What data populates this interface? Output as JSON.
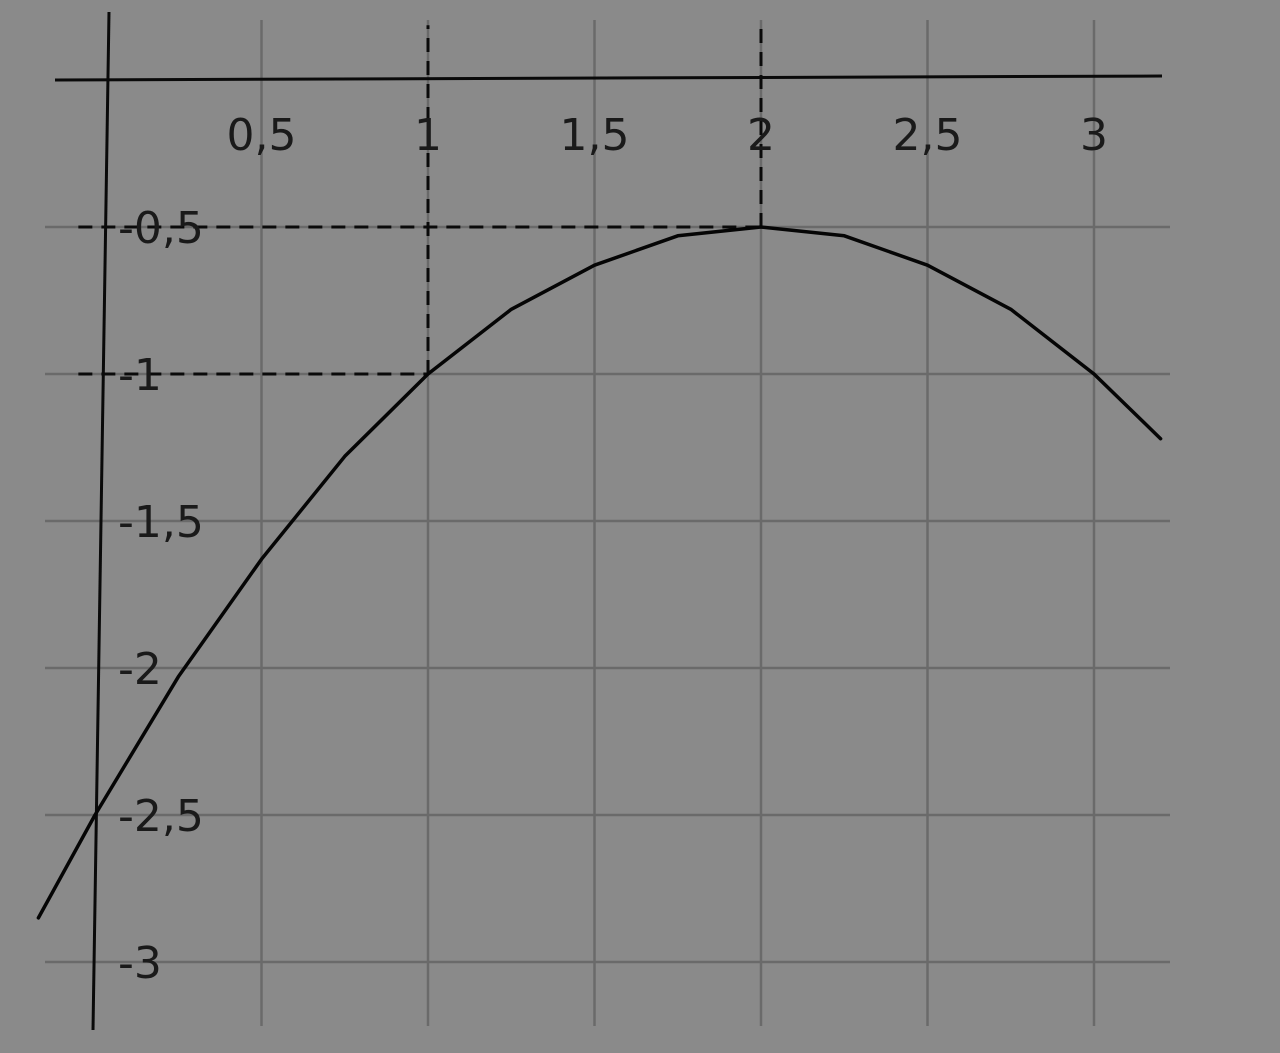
{
  "chart_data": {
    "type": "line",
    "title": "",
    "xlabel": "",
    "ylabel": "",
    "xlim": [
      -0.05,
      3.2
    ],
    "ylim": [
      -3.2,
      0.05
    ],
    "grid": true,
    "x_ticks": [
      {
        "value": 0.5,
        "label": "0,5"
      },
      {
        "value": 1,
        "label": "1"
      },
      {
        "value": 1.5,
        "label": "1,5"
      },
      {
        "value": 2,
        "label": "2"
      },
      {
        "value": 2.5,
        "label": "2,5"
      },
      {
        "value": 3,
        "label": "3"
      }
    ],
    "y_ticks": [
      {
        "value": -0.5,
        "label": "-0,5"
      },
      {
        "value": -1,
        "label": "-1"
      },
      {
        "value": -1.5,
        "label": "-1,5"
      },
      {
        "value": -2,
        "label": "-2"
      },
      {
        "value": -2.5,
        "label": "-2,5"
      },
      {
        "value": -3,
        "label": "-3"
      }
    ],
    "series": [
      {
        "function": "-0.5*(x-2)^2 - 0.5",
        "x": [
          -0.17,
          0,
          0.25,
          0.5,
          0.75,
          1,
          1.25,
          1.5,
          1.75,
          2,
          2.25,
          2.5,
          2.75,
          3,
          3.2
        ],
        "y": [
          -2.85,
          -2.5,
          -2.03,
          -1.63,
          -1.28,
          -1.0,
          -0.78,
          -0.63,
          -0.53,
          -0.5,
          -0.53,
          -0.63,
          -0.78,
          -1.0,
          -1.22
        ],
        "color": "#050505"
      }
    ],
    "guides": [
      {
        "kind": "vertical",
        "x": 1,
        "y_from": -1,
        "y_to": 0.05
      },
      {
        "kind": "vertical",
        "x": 2,
        "y_from": -0.5,
        "y_to": 0.05
      },
      {
        "kind": "horizontal",
        "y": -1,
        "x_from": -0.05,
        "x_to": 1
      },
      {
        "kind": "horizontal",
        "y": -0.5,
        "x_from": -0.05,
        "x_to": 2
      }
    ]
  }
}
